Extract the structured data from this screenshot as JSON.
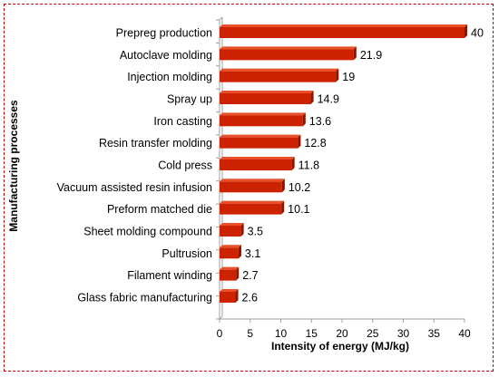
{
  "chart_data": {
    "type": "bar",
    "orientation": "horizontal",
    "categories": [
      "Prepreg production",
      "Autoclave molding",
      "Injection molding",
      "Spray up",
      "Iron casting",
      "Resin transfer molding",
      "Cold press",
      "Vacuum assisted resin infusion",
      "Preform matched die",
      "Sheet molding compound",
      "Pultrusion",
      "Filament winding",
      "Glass fabric manufacturing"
    ],
    "values": [
      40,
      21.9,
      19,
      14.9,
      13.6,
      12.8,
      11.8,
      10.2,
      10.1,
      3.5,
      3.1,
      2.7,
      2.6
    ],
    "value_labels": [
      "40",
      "21.9",
      "19",
      "14.9",
      "13.6",
      "12.8",
      "11.8",
      "10.2",
      "10.1",
      "3.5",
      "3.1",
      "2.7",
      "2.6"
    ],
    "xlabel": "Intensity of energy (MJ/kg)",
    "ylabel": "Manufacturing processes",
    "xlim": [
      0,
      40
    ],
    "xticks": [
      0,
      5,
      10,
      15,
      20,
      25,
      30,
      35,
      40
    ],
    "grid": false,
    "legend": "none",
    "colors": {
      "bar": "#cc2200",
      "bar_top": "#e8502a",
      "bar_side": "#8a1500",
      "frame_border": "#c00000",
      "axis": "#a0a0a0"
    }
  }
}
